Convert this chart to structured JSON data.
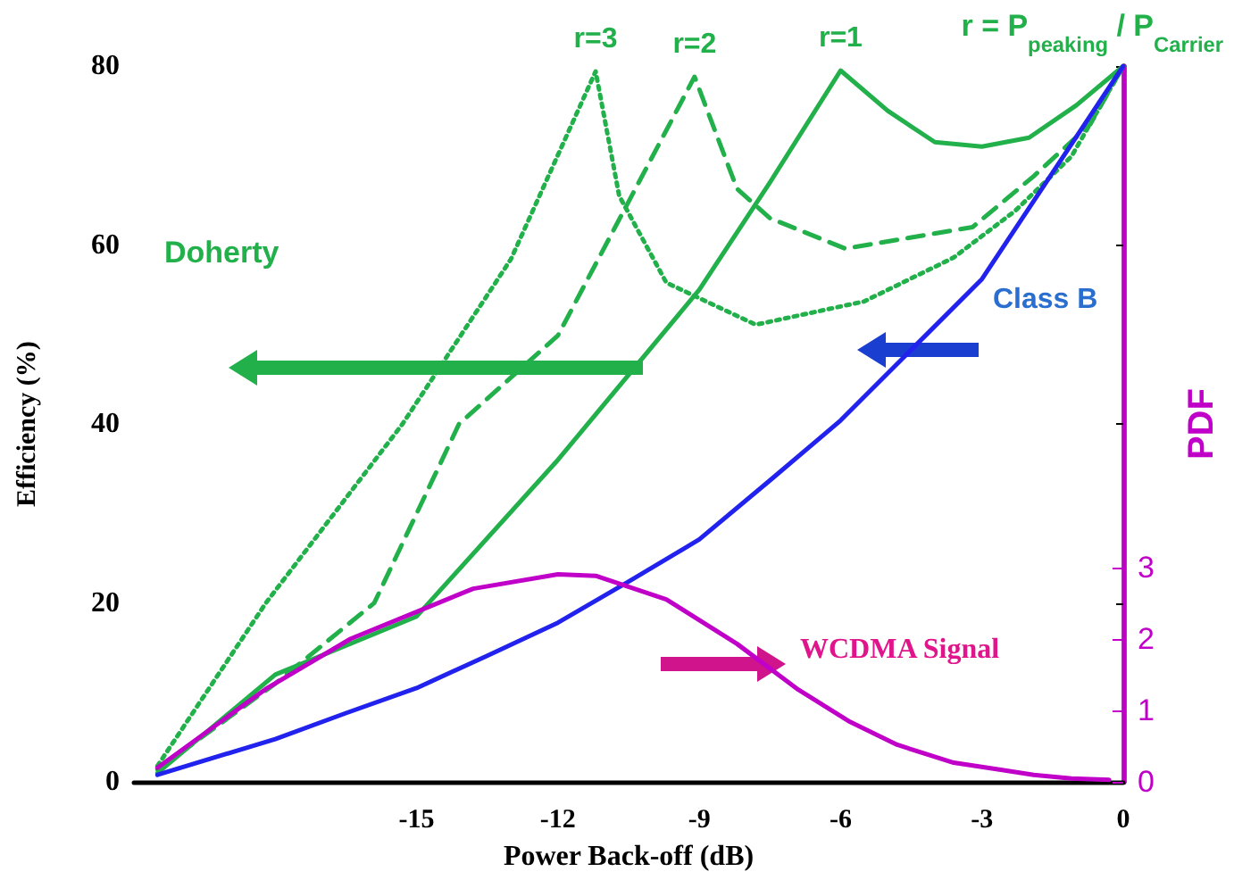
{
  "chart_data": {
    "type": "line",
    "xlabel": "Power Back-off (dB)",
    "ylabel": "Efficiency (%)",
    "y2label": "PDF",
    "xlim": [
      -21,
      0
    ],
    "xticks": [
      -15,
      -12,
      -9,
      -6,
      -3,
      0
    ],
    "ylim": [
      0,
      80
    ],
    "yticks": [
      0,
      20,
      40,
      60,
      80
    ],
    "y2lim": [
      0,
      10
    ],
    "y2ticks": [
      0,
      1,
      2,
      3
    ],
    "grid": false,
    "marker": "none",
    "series": [
      {
        "color": "#22b04b",
        "line_style": "solid",
        "x": [
          -20.5,
          -18,
          -15,
          -12,
          -9,
          -7.5,
          -6,
          -5,
          -4,
          -3,
          -2,
          -1,
          0
        ],
        "values": [
          1.0,
          12,
          18.5,
          36,
          55,
          67,
          79.5,
          75,
          71.5,
          71,
          72,
          75.6,
          80
        ]
      },
      {
        "color": "#22b04b",
        "line_style": "dashed",
        "x": [
          -20.5,
          -18,
          -15.9,
          -14.1,
          -12,
          -9.1,
          -8.2,
          -7.5,
          -5.9,
          -3.2,
          -1.9,
          -0.7,
          0
        ],
        "values": [
          1.4,
          11,
          20,
          40,
          49.9,
          78.8,
          66.3,
          63,
          59.6,
          62,
          67.7,
          73.5,
          80
        ]
      },
      {
        "color": "#22b04b",
        "line_style": "dotted",
        "x": [
          -20.5,
          -18.2,
          -15.3,
          -13,
          -11.2,
          -10.7,
          -9.7,
          -7.8,
          -5.5,
          -3.6,
          -2.3,
          -1.1,
          0
        ],
        "values": [
          1.8,
          20,
          40,
          58.4,
          79.4,
          65.5,
          55.8,
          51.1,
          53.7,
          58.6,
          63.8,
          69.9,
          80
        ]
      },
      {
        "color": "#2222ee",
        "line_style": "solid",
        "x": [
          -20.5,
          -18,
          -16.5,
          -15,
          -13.5,
          -12,
          -10.5,
          -9,
          -7.5,
          -6,
          -4.5,
          -3,
          -1.5,
          0
        ],
        "values": [
          0.8,
          4.8,
          7.7,
          10.5,
          14.1,
          17.8,
          22.4,
          27.1,
          33.7,
          40.4,
          48.3,
          56.2,
          68.1,
          80
        ]
      },
      {
        "color": "#c000c8",
        "line_style": "solid",
        "axis": "y2",
        "x": [
          -20.5,
          -18.2,
          -16.4,
          -13.8,
          -12,
          -11.2,
          -9.7,
          -8.2,
          -6.9,
          -5.8,
          -4.8,
          -3.6,
          -2.6,
          -1.9,
          -1.1,
          -0.3
        ],
        "values": [
          0.2,
          1.3,
          2.0,
          2.7,
          2.9,
          2.88,
          2.55,
          1.93,
          1.29,
          0.84,
          0.52,
          0.27,
          0.17,
          0.1,
          0.05,
          0.03
        ]
      }
    ],
    "annotations": [
      {
        "text": "r=3",
        "x": -11.2,
        "y": 79.4
      },
      {
        "text": "r=2",
        "x": -9.1,
        "y": 78.8
      },
      {
        "text": "r=1",
        "x": -6,
        "y": 79.5
      },
      "r = P$_{peaking}$ / P$_{Carrier}$",
      "Doherty",
      "Class B",
      "WCDMA Signal"
    ]
  }
}
